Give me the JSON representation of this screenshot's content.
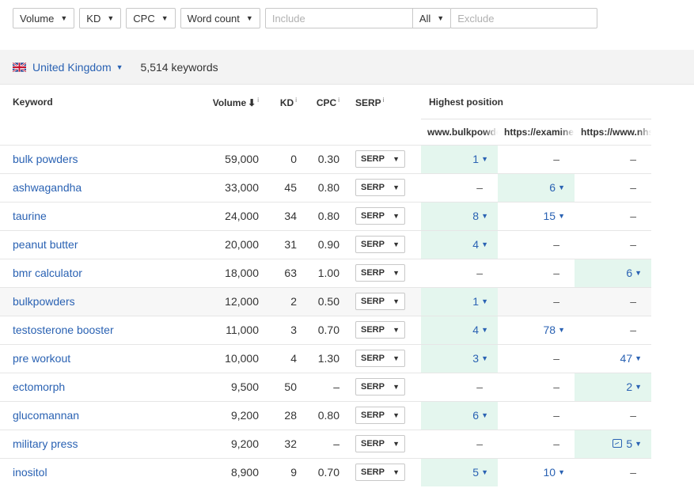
{
  "filters": {
    "volume": "Volume",
    "kd": "KD",
    "cpc": "CPC",
    "word_count": "Word count",
    "include_placeholder": "Include",
    "all": "All",
    "exclude_placeholder": "Exclude"
  },
  "country": {
    "name": "United Kingdom",
    "keyword_count": "5,514 keywords"
  },
  "table": {
    "headers": {
      "keyword": "Keyword",
      "volume": "Volume",
      "kd": "KD",
      "cpc": "CPC",
      "serp": "SERP",
      "highest_position": "Highest position",
      "info_mark": "i",
      "site1": "www.bulkpowders",
      "site2": "https://examine",
      "site3": "https://www.nhs"
    },
    "serp_label": "SERP",
    "rows": [
      {
        "keyword": "bulk powders",
        "volume": "59,000",
        "kd": "0",
        "cpc": "0.30",
        "p1": "1",
        "p2": "–",
        "p3": "–"
      },
      {
        "keyword": "ashwagandha",
        "volume": "33,000",
        "kd": "45",
        "cpc": "0.80",
        "p1": "–",
        "p2": "6",
        "p3": "–"
      },
      {
        "keyword": "taurine",
        "volume": "24,000",
        "kd": "34",
        "cpc": "0.80",
        "p1": "8",
        "p2": "15",
        "p3": "–"
      },
      {
        "keyword": "peanut butter",
        "volume": "20,000",
        "kd": "31",
        "cpc": "0.90",
        "p1": "4",
        "p2": "–",
        "p3": "–"
      },
      {
        "keyword": "bmr calculator",
        "volume": "18,000",
        "kd": "63",
        "cpc": "1.00",
        "p1": "–",
        "p2": "–",
        "p3": "6"
      },
      {
        "keyword": "bulkpowders",
        "volume": "12,000",
        "kd": "2",
        "cpc": "0.50",
        "p1": "1",
        "p2": "–",
        "p3": "–"
      },
      {
        "keyword": "testosterone booster",
        "volume": "11,000",
        "kd": "3",
        "cpc": "0.70",
        "p1": "4",
        "p2": "78",
        "p3": "–"
      },
      {
        "keyword": "pre workout",
        "volume": "10,000",
        "kd": "4",
        "cpc": "1.30",
        "p1": "3",
        "p2": "–",
        "p3": "47"
      },
      {
        "keyword": "ectomorph",
        "volume": "9,500",
        "kd": "50",
        "cpc": "–",
        "p1": "–",
        "p2": "–",
        "p3": "2"
      },
      {
        "keyword": "glucomannan",
        "volume": "9,200",
        "kd": "28",
        "cpc": "0.80",
        "p1": "6",
        "p2": "–",
        "p3": "–"
      },
      {
        "keyword": "military press",
        "volume": "9,200",
        "kd": "32",
        "cpc": "–",
        "p1": "–",
        "p2": "–",
        "p3": "5"
      },
      {
        "keyword": "inositol",
        "volume": "8,900",
        "kd": "9",
        "cpc": "0.70",
        "p1": "5",
        "p2": "10",
        "p3": "–"
      }
    ]
  },
  "colors": {
    "link": "#2a62b3",
    "best_position_bg": "#e4f6ee",
    "country_bar_bg": "#f3f3f3"
  }
}
